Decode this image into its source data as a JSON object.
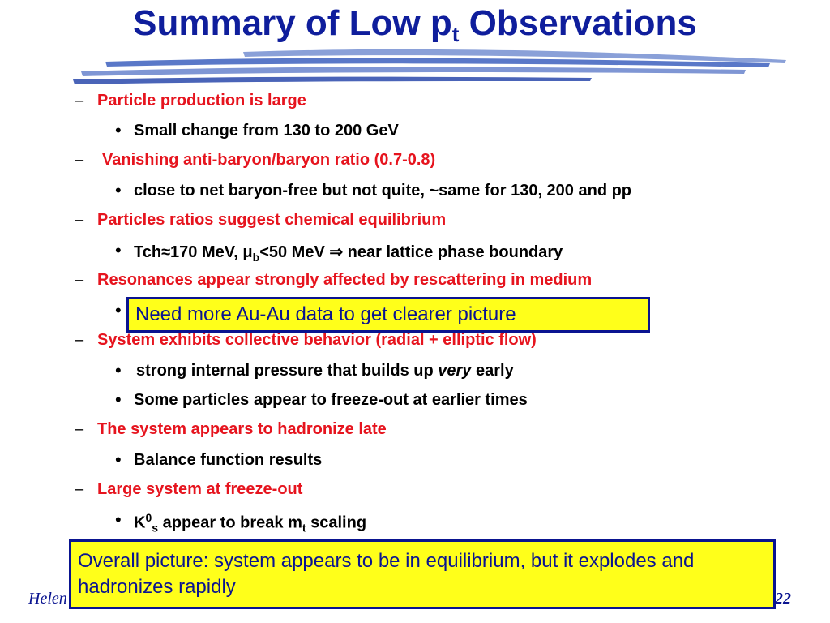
{
  "title": {
    "main": "Summary of Low p",
    "sub": "t",
    "rest": " Observations"
  },
  "dash_symbol": "–",
  "bullet_symbol": "•",
  "items": [
    {
      "text": "Particle production is large"
    },
    {
      "text": "Small change from 130 to 200 GeV"
    },
    {
      "text": "Vanishing anti-baryon/baryon ratio (0.7-0.8)"
    },
    {
      "text": "close to net baryon-free but not quite, ~same for 130, 200 and pp"
    },
    {
      "text": "Particles ratios suggest chemical equilibrium"
    },
    {
      "a": "Tch≈170 MeV, μ",
      "b_sub": "b",
      "c": "<50 MeV ⇒ near lattice phase boundary"
    },
    {
      "text": "Resonances appear strongly affected by rescattering in medium"
    },
    {
      "text": "System exhibits collective behavior (radial + elliptic flow)"
    },
    {
      "a": " strong internal pressure that builds up ",
      "b": "very",
      "c": " early"
    },
    {
      "text": "Some particles appear to freeze-out at earlier times"
    },
    {
      "text": "The system appears to hadronize late"
    },
    {
      "text": "Balance function results"
    },
    {
      "text": "Large  system at freeze-out"
    },
    {
      "k": "K",
      "sup": "0",
      "sub": "s",
      "mid": " appear to break m",
      "sub2": "t",
      "end": " scaling"
    }
  ],
  "box1": "Need more Au-Au data to get clearer picture",
  "box2": "Overall picture: system appears to be in equilibrium, but it explodes and hadronizes rapidly",
  "footer": "Helen",
  "page_number": "22",
  "colors": {
    "title": "#0f1e9c",
    "red_text": "#e6141e",
    "highlight": "#ffff1a",
    "border": "#0a1490"
  }
}
